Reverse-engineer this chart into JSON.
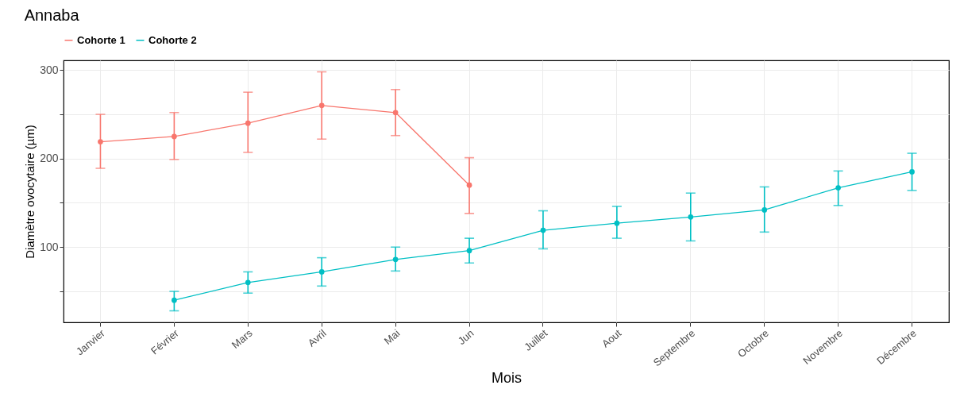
{
  "chart_data": {
    "type": "line",
    "title": "Annaba",
    "xlabel": "Mois",
    "ylabel": "Diamètre ovocytaire (µm)",
    "categories": [
      "Janvier",
      "Février",
      "Mars",
      "Avril",
      "Mai",
      "Jun",
      "Juillet",
      "Aout",
      "Septembre",
      "Octobre",
      "Novembre",
      "Décembre"
    ],
    "series": [
      {
        "name": "Cohorte 1",
        "color": "#f8766d",
        "values": [
          219,
          225,
          240,
          260,
          252,
          170,
          null,
          null,
          null,
          null,
          null,
          null
        ],
        "errors": [
          [
            189,
            250
          ],
          [
            199,
            252
          ],
          [
            207,
            275
          ],
          [
            222,
            298
          ],
          [
            226,
            278
          ],
          [
            138,
            201
          ],
          null,
          null,
          null,
          null,
          null,
          null
        ]
      },
      {
        "name": "Cohorte 2",
        "color": "#00bfc4",
        "values": [
          null,
          40,
          60,
          72,
          86,
          96,
          119,
          127,
          134,
          142,
          167,
          185
        ],
        "errors": [
          null,
          [
            28,
            50
          ],
          [
            48,
            72
          ],
          [
            56,
            88
          ],
          [
            73,
            100
          ],
          [
            82,
            110
          ],
          [
            98,
            141
          ],
          [
            110,
            146
          ],
          [
            107,
            161
          ],
          [
            117,
            168
          ],
          [
            147,
            186
          ],
          [
            164,
            206
          ]
        ]
      }
    ],
    "ylim": [
      15,
      311
    ],
    "yticks": [
      {
        "value": 50,
        "label": null
      },
      100,
      {
        "value": 150,
        "label": null
      },
      200,
      {
        "value": 250,
        "label": null
      },
      300
    ],
    "grid": true,
    "legend": "top",
    "marker": "circle",
    "line_style": "solid"
  }
}
